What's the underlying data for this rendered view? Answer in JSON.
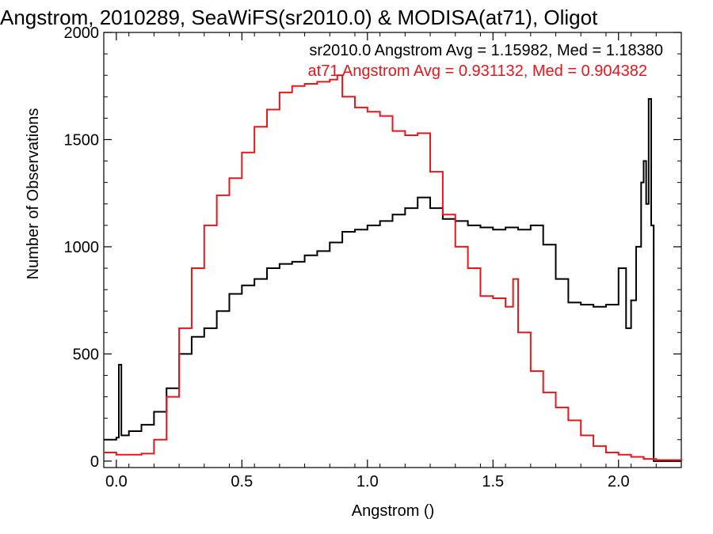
{
  "chart_data": {
    "type": "line",
    "title": "Angstrom, 2010289, SeaWiFS(sr2010.0) & MODISA(at71), Oligot",
    "xlabel": "Angstrom ()",
    "ylabel": "Number of Observations",
    "xlim": [
      -0.05,
      2.25
    ],
    "ylim": [
      -30,
      2000
    ],
    "xticks": [
      {
        "v": 0.0,
        "label": "0.0"
      },
      {
        "v": 0.5,
        "label": "0.5"
      },
      {
        "v": 1.0,
        "label": "1.0"
      },
      {
        "v": 1.5,
        "label": "1.5"
      },
      {
        "v": 2.0,
        "label": "2.0"
      }
    ],
    "yticks": [
      {
        "v": 0,
        "label": "0"
      },
      {
        "v": 500,
        "label": "500"
      },
      {
        "v": 1000,
        "label": "1000"
      },
      {
        "v": 1500,
        "label": "1500"
      },
      {
        "v": 2000,
        "label": "2000"
      }
    ],
    "grid": false,
    "annotations": [
      {
        "text": "sr2010.0 Angstrom Avg = 1.15982, Med = 1.18380",
        "color": "#000000"
      },
      {
        "text": "at71 Angstrom Avg = 0.931132, Med = 0.904382",
        "color": "#e8161b"
      }
    ],
    "series": [
      {
        "color": "#000000",
        "x": [
          -0.05,
          0.0,
          0.01,
          0.02,
          0.05,
          0.1,
          0.15,
          0.2,
          0.25,
          0.3,
          0.35,
          0.4,
          0.45,
          0.5,
          0.55,
          0.6,
          0.65,
          0.7,
          0.75,
          0.8,
          0.85,
          0.9,
          0.95,
          1.0,
          1.05,
          1.1,
          1.15,
          1.2,
          1.25,
          1.3,
          1.35,
          1.4,
          1.45,
          1.5,
          1.55,
          1.6,
          1.65,
          1.7,
          1.75,
          1.8,
          1.85,
          1.9,
          1.95,
          2.0,
          2.03,
          2.05,
          2.07,
          2.09,
          2.1,
          2.11,
          2.12,
          2.13,
          2.14,
          2.15,
          2.25
        ],
        "y": [
          100,
          110,
          450,
          120,
          140,
          170,
          230,
          340,
          500,
          580,
          620,
          700,
          780,
          820,
          850,
          900,
          920,
          930,
          960,
          980,
          1020,
          1070,
          1080,
          1100,
          1120,
          1150,
          1180,
          1230,
          1180,
          1130,
          1120,
          1100,
          1090,
          1080,
          1090,
          1080,
          1100,
          1010,
          850,
          740,
          730,
          720,
          730,
          900,
          620,
          750,
          1000,
          1300,
          1400,
          1200,
          1690,
          1100,
          0,
          0,
          0
        ]
      },
      {
        "color": "#e8161b",
        "x": [
          -0.05,
          0.0,
          0.05,
          0.1,
          0.15,
          0.2,
          0.25,
          0.3,
          0.35,
          0.4,
          0.45,
          0.5,
          0.55,
          0.6,
          0.65,
          0.7,
          0.75,
          0.8,
          0.85,
          0.88,
          0.9,
          0.95,
          1.0,
          1.05,
          1.1,
          1.15,
          1.2,
          1.25,
          1.3,
          1.35,
          1.4,
          1.45,
          1.5,
          1.55,
          1.58,
          1.6,
          1.65,
          1.7,
          1.75,
          1.8,
          1.85,
          1.9,
          1.95,
          2.0,
          2.05,
          2.1,
          2.15,
          2.25
        ],
        "y": [
          40,
          30,
          30,
          35,
          100,
          300,
          620,
          900,
          1100,
          1240,
          1320,
          1440,
          1560,
          1640,
          1720,
          1750,
          1760,
          1770,
          1780,
          1800,
          1700,
          1650,
          1630,
          1610,
          1540,
          1520,
          1530,
          1350,
          1150,
          1000,
          900,
          770,
          760,
          720,
          850,
          600,
          420,
          320,
          250,
          190,
          120,
          70,
          40,
          30,
          20,
          10,
          5,
          0
        ]
      }
    ]
  }
}
